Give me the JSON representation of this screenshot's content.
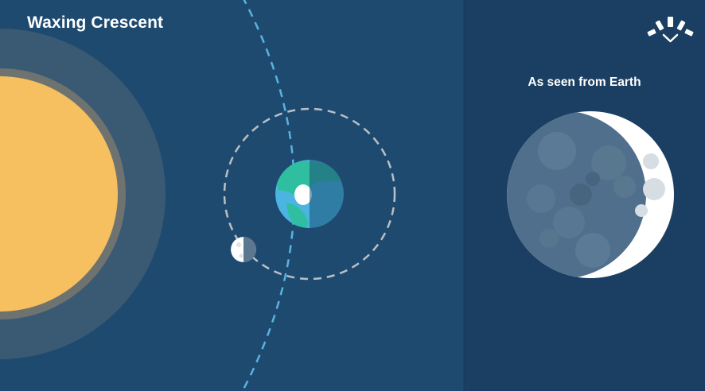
{
  "diagram": {
    "phase_title": "Waxing Crescent",
    "view_title": "As seen from Earth"
  },
  "colors": {
    "space_left": "#1f4a70",
    "space_right": "#1a3f62",
    "sun_core": "#f6bf5f",
    "sun_ring": "#6f7370",
    "sun_glow": "#3a5a74",
    "orbit_earth": "#5ab2df",
    "orbit_moon": "#b8c0c4",
    "earth_ocean": "#4bb4e0",
    "earth_land": "#2fbfa0",
    "earth_night": "#2c6f8f",
    "moon_light": "#ffffff",
    "moon_dark": "#4f6f8d",
    "logo": "#ffffff"
  },
  "icons": {
    "logo": "sunrise-logo-icon"
  }
}
